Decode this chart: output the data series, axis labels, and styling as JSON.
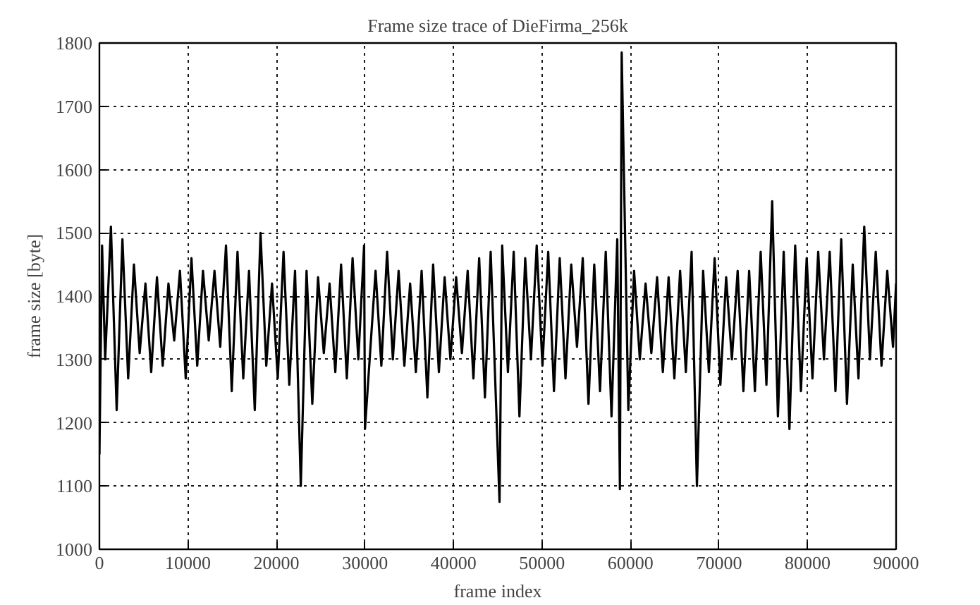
{
  "chart_data": {
    "type": "line",
    "title": "Frame size trace of DieFirma_256k",
    "xlabel": "frame index",
    "ylabel": "frame size [byte]",
    "xlim": [
      0,
      90000
    ],
    "ylim": [
      1000,
      1800
    ],
    "xticks": [
      0,
      10000,
      20000,
      30000,
      40000,
      50000,
      60000,
      70000,
      80000,
      90000
    ],
    "yticks": [
      1000,
      1100,
      1200,
      1300,
      1400,
      1500,
      1600,
      1700,
      1800
    ],
    "grid": true,
    "marker": "none",
    "line_style": "solid",
    "series": [
      {
        "color": "#000000",
        "x": [
          0,
          300,
          650,
          1300,
          1950,
          2600,
          3250,
          3900,
          4550,
          5200,
          5850,
          6500,
          7150,
          7800,
          8450,
          9100,
          9750,
          10400,
          11050,
          11700,
          12350,
          13000,
          13650,
          14300,
          14950,
          15600,
          16250,
          16900,
          17550,
          18200,
          18850,
          19500,
          20150,
          20800,
          21450,
          22100,
          22750,
          23400,
          24050,
          24700,
          25350,
          26000,
          26650,
          27300,
          27950,
          28600,
          29250,
          29900,
          30000,
          31200,
          31850,
          32500,
          33150,
          33800,
          34450,
          35100,
          35750,
          36400,
          37050,
          37700,
          38350,
          39000,
          39650,
          40300,
          40950,
          41600,
          42250,
          42900,
          43550,
          44200,
          45200,
          45500,
          46150,
          46800,
          47450,
          48100,
          48750,
          49400,
          50050,
          50700,
          51350,
          52000,
          52650,
          53300,
          53950,
          54600,
          55250,
          55900,
          56550,
          57200,
          57850,
          58500,
          58800,
          59000,
          59750,
          60400,
          61050,
          61700,
          62350,
          63000,
          63650,
          64300,
          64950,
          65600,
          66250,
          66900,
          67500,
          68200,
          68850,
          69500,
          70150,
          70800,
          71450,
          72100,
          72750,
          73400,
          74050,
          74700,
          75350,
          76000,
          76650,
          77300,
          77950,
          78600,
          79250,
          79900,
          80550,
          81200,
          81850,
          82500,
          83150,
          83800,
          84450,
          85100,
          85750,
          86400,
          87050,
          87700,
          88350,
          89000,
          89650,
          90000
        ],
        "values": [
          1150,
          1480,
          1300,
          1510,
          1220,
          1490,
          1270,
          1450,
          1310,
          1420,
          1280,
          1430,
          1290,
          1420,
          1330,
          1440,
          1270,
          1460,
          1290,
          1440,
          1330,
          1440,
          1320,
          1480,
          1250,
          1470,
          1270,
          1440,
          1220,
          1500,
          1290,
          1420,
          1270,
          1470,
          1260,
          1440,
          1100,
          1440,
          1230,
          1430,
          1310,
          1420,
          1280,
          1450,
          1270,
          1460,
          1300,
          1480,
          1190,
          1440,
          1290,
          1470,
          1300,
          1440,
          1290,
          1420,
          1280,
          1440,
          1240,
          1450,
          1280,
          1430,
          1300,
          1430,
          1310,
          1440,
          1270,
          1460,
          1240,
          1470,
          1075,
          1480,
          1280,
          1470,
          1210,
          1460,
          1300,
          1480,
          1290,
          1470,
          1250,
          1460,
          1270,
          1450,
          1320,
          1460,
          1230,
          1450,
          1250,
          1470,
          1210,
          1490,
          1095,
          1785,
          1220,
          1440,
          1300,
          1420,
          1310,
          1430,
          1280,
          1430,
          1270,
          1440,
          1280,
          1470,
          1100,
          1440,
          1280,
          1460,
          1260,
          1430,
          1300,
          1440,
          1250,
          1440,
          1250,
          1470,
          1260,
          1550,
          1210,
          1470,
          1190,
          1480,
          1250,
          1460,
          1270,
          1470,
          1300,
          1470,
          1250,
          1490,
          1230,
          1450,
          1270,
          1510,
          1300,
          1470,
          1290,
          1440,
          1320,
          1420
        ]
      }
    ]
  }
}
